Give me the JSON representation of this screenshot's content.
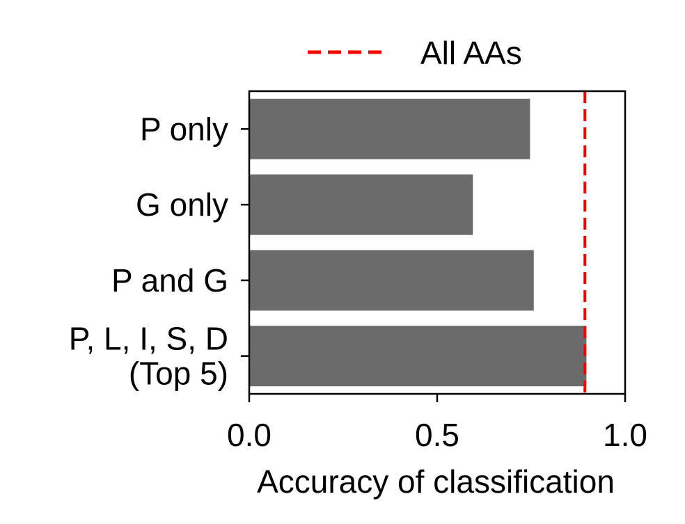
{
  "chart_data": {
    "type": "bar",
    "orientation": "horizontal",
    "categories": [
      [
        "P only"
      ],
      [
        "G only"
      ],
      [
        "P and G"
      ],
      [
        "P, L, I, S, D",
        "(Top 5)"
      ]
    ],
    "values": [
      0.747,
      0.595,
      0.757,
      0.897
    ],
    "xlabel": "Accuracy of classification",
    "ylabel": "",
    "xlim": [
      0.0,
      1.0
    ],
    "x_ticks": [
      "0.0",
      "0.5",
      "1.0"
    ],
    "x_tick_values": [
      0.0,
      0.5,
      1.0
    ],
    "reference_line": {
      "name": "All AAs",
      "value": 0.893,
      "color": "#ff0000",
      "style": "dashed"
    },
    "legend": {
      "entries": [
        "All AAs"
      ],
      "position": "top-center"
    },
    "bar_color": "#6b6b6b",
    "grid": false
  }
}
